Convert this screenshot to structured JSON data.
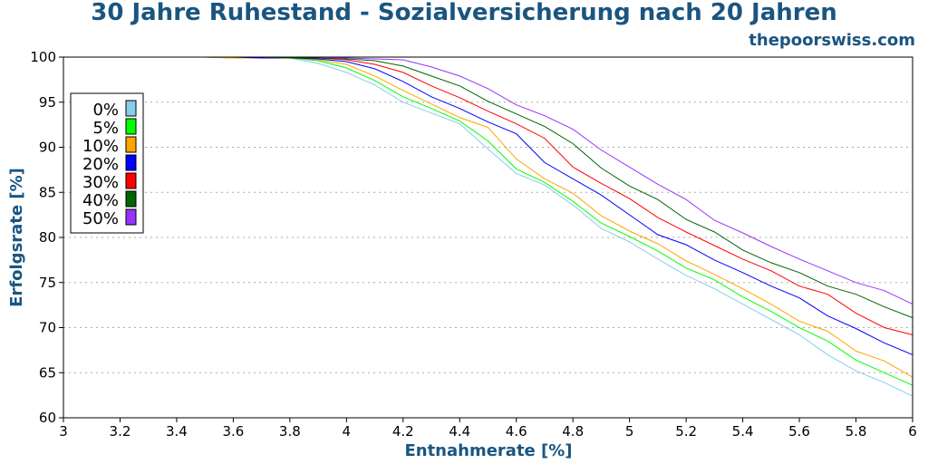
{
  "header": {
    "title": "30 Jahre Ruhestand - Sozialversicherung nach 20 Jahren",
    "site": "thepoorswiss.com"
  },
  "chart_data": {
    "type": "line",
    "title": "30 Jahre Ruhestand - Sozialversicherung nach 20 Jahren",
    "xlabel": "Entnahmerate [%]",
    "ylabel": "Erfolgsrate [%]",
    "xlim": [
      3,
      6
    ],
    "ylim": [
      60,
      100
    ],
    "xticks": [
      3,
      3.2,
      3.4,
      3.6,
      3.8,
      4,
      4.2,
      4.4,
      4.6,
      4.8,
      5,
      5.2,
      5.4,
      5.6,
      5.8,
      6
    ],
    "xtick_labels": [
      "3",
      "3.2",
      "3.4",
      "3.6",
      "3.8",
      "4",
      "4.2",
      "4.4",
      "4.6",
      "4.8",
      "5",
      "5.2",
      "5.4",
      "5.6",
      "5.8",
      "6"
    ],
    "yticks": [
      60,
      65,
      70,
      75,
      80,
      85,
      90,
      95,
      100
    ],
    "ytick_labels": [
      "60",
      "65",
      "70",
      "75",
      "80",
      "85",
      "90",
      "95",
      "100"
    ],
    "grid": "horizontal dotted",
    "legend_position": "upper-left",
    "x": [
      3,
      3.1,
      3.2,
      3.3,
      3.4,
      3.5,
      3.6,
      3.7,
      3.8,
      3.9,
      4,
      4.1,
      4.2,
      4.3,
      4.4,
      4.5,
      4.6,
      4.7,
      4.8,
      4.9,
      5,
      5.1,
      5.2,
      5.3,
      5.4,
      5.5,
      5.6,
      5.7,
      5.8,
      5.9,
      6
    ],
    "series": [
      {
        "name": "0%",
        "color": "#87ceeb",
        "values": [
          100,
          100,
          100,
          100,
          100,
          100,
          99.9,
          99.9,
          99.9,
          99.3,
          98.3,
          96.9,
          95.0,
          93.8,
          92.6,
          89.8,
          87.1,
          85.8,
          83.6,
          81.0,
          79.5,
          77.6,
          75.8,
          74.3,
          72.6,
          70.9,
          69.2,
          67.0,
          65.2,
          63.9,
          62.4
        ]
      },
      {
        "name": "5%",
        "color": "#00ff00",
        "values": [
          100,
          100,
          100,
          100,
          100,
          100,
          99.9,
          99.9,
          99.9,
          99.6,
          98.8,
          97.4,
          95.6,
          94.3,
          92.9,
          90.7,
          87.6,
          86.1,
          84.0,
          81.6,
          80.1,
          78.5,
          76.6,
          75.3,
          73.4,
          71.8,
          70.0,
          68.5,
          66.4,
          65.0,
          63.6
        ]
      },
      {
        "name": "10%",
        "color": "#ffa500",
        "values": [
          100,
          100,
          100,
          100,
          100,
          100,
          99.9,
          99.9,
          99.9,
          99.7,
          99.2,
          97.9,
          96.3,
          94.8,
          93.3,
          92.2,
          88.7,
          86.5,
          84.9,
          82.4,
          80.7,
          79.3,
          77.4,
          75.9,
          74.3,
          72.6,
          70.7,
          69.6,
          67.4,
          66.3,
          64.5
        ]
      },
      {
        "name": "20%",
        "color": "#0000ff",
        "values": [
          100,
          100,
          100,
          100,
          100,
          100,
          100,
          99.9,
          99.9,
          99.8,
          99.5,
          98.7,
          97.3,
          95.6,
          94.3,
          92.8,
          91.5,
          88.3,
          86.5,
          84.7,
          82.5,
          80.3,
          79.2,
          77.5,
          76.1,
          74.6,
          73.3,
          71.3,
          69.9,
          68.3,
          67.0
        ]
      },
      {
        "name": "30%",
        "color": "#ff0000",
        "values": [
          100,
          100,
          100,
          100,
          100,
          100,
          100,
          100,
          99.9,
          99.9,
          99.7,
          99.2,
          98.3,
          96.8,
          95.5,
          94.0,
          92.6,
          91.0,
          87.8,
          86.0,
          84.3,
          82.2,
          80.6,
          79.1,
          77.6,
          76.3,
          74.6,
          73.7,
          71.6,
          70.0,
          69.2
        ]
      },
      {
        "name": "40%",
        "color": "#006400",
        "values": [
          100,
          100,
          100,
          100,
          100,
          100,
          100,
          100,
          99.9,
          99.9,
          99.8,
          99.6,
          99.0,
          97.9,
          96.8,
          95.1,
          93.7,
          92.3,
          90.4,
          87.7,
          85.7,
          84.2,
          82.0,
          80.6,
          78.6,
          77.2,
          76.1,
          74.6,
          73.7,
          72.3,
          71.1
        ]
      },
      {
        "name": "50%",
        "color": "#9932ff",
        "values": [
          100,
          100,
          100,
          100,
          100,
          100,
          100,
          100,
          100,
          100,
          99.9,
          99.8,
          99.7,
          98.9,
          97.9,
          96.5,
          94.7,
          93.5,
          92.0,
          89.7,
          87.8,
          85.9,
          84.2,
          81.9,
          80.5,
          79.0,
          77.6,
          76.3,
          75.0,
          74.1,
          72.6
        ]
      }
    ]
  }
}
